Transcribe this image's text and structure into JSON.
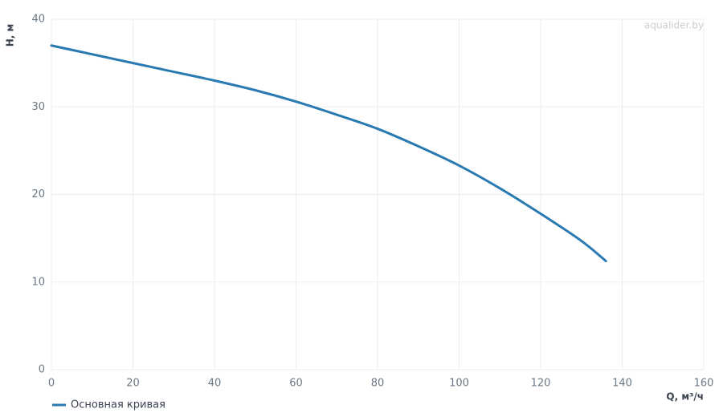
{
  "chart_data": {
    "type": "line",
    "watermark": "aqualider.by",
    "x_label": "Q, м³/ч",
    "y_label": "H, м",
    "x": [
      0,
      10,
      20,
      30,
      40,
      50,
      60,
      70,
      80,
      90,
      100,
      110,
      120,
      130,
      136
    ],
    "series": [
      {
        "name": "Основная кривая",
        "color": "#2a7ab2",
        "values": [
          37.0,
          36.0,
          35.0,
          34.0,
          33.0,
          31.9,
          30.6,
          29.1,
          27.5,
          25.5,
          23.3,
          20.7,
          17.8,
          14.7,
          12.4
        ]
      }
    ],
    "xlim": [
      0,
      160
    ],
    "xticks": [
      0,
      20,
      40,
      60,
      80,
      100,
      120,
      140,
      160
    ],
    "ylim": [
      0,
      40
    ],
    "yticks": [
      0,
      10,
      20,
      30,
      40
    ],
    "grid": true,
    "legend": "bottom-left"
  }
}
